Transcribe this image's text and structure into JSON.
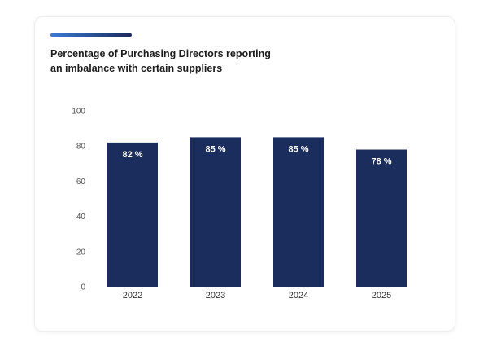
{
  "card": {
    "accent_gradient_start": "#3a7bd5",
    "accent_gradient_end": "#1b2a5a"
  },
  "chart_data": {
    "type": "bar",
    "title_lines": [
      "Percentage of Purchasing Directors reporting",
      "an imbalance with certain suppliers"
    ],
    "categories": [
      "2022",
      "2023",
      "2024",
      "2025"
    ],
    "values": [
      82,
      85,
      85,
      78
    ],
    "data_labels": [
      "82 %",
      "85 %",
      "85 %",
      "78 %"
    ],
    "ylim": [
      0,
      100
    ],
    "yticks": [
      0,
      20,
      40,
      60,
      80,
      100
    ],
    "grid": false,
    "legend": "none",
    "bar_color": "#1b2d5c",
    "label_color": "#ffffff"
  }
}
